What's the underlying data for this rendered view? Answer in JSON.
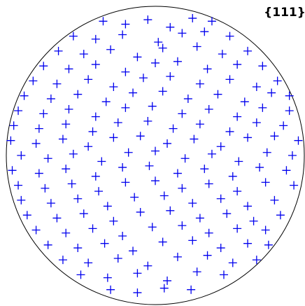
{
  "chart_data": {
    "type": "pole-figure",
    "title": "{111}",
    "color": "#0000ee",
    "xlim": [
      -1,
      1
    ],
    "ylim": [
      -1,
      1
    ],
    "points": [
      [
        -0.35,
        0.9
      ],
      [
        -0.2,
        0.88
      ],
      [
        -0.05,
        0.91
      ],
      [
        0.1,
        0.86
      ],
      [
        0.25,
        0.92
      ],
      [
        0.38,
        0.9
      ],
      [
        -0.55,
        0.8
      ],
      [
        -0.4,
        0.78
      ],
      [
        -0.22,
        0.81
      ],
      [
        0.02,
        0.76
      ],
      [
        0.18,
        0.82
      ],
      [
        0.33,
        0.83
      ],
      [
        0.5,
        0.8
      ],
      [
        -0.65,
        0.7
      ],
      [
        -0.48,
        0.68
      ],
      [
        -0.3,
        0.71
      ],
      [
        -0.12,
        0.66
      ],
      [
        0.05,
        0.72
      ],
      [
        0.28,
        0.73
      ],
      [
        0.45,
        0.68
      ],
      [
        0.62,
        0.7
      ],
      [
        -0.75,
        0.6
      ],
      [
        -0.58,
        0.58
      ],
      [
        -0.4,
        0.61
      ],
      [
        -0.2,
        0.56
      ],
      [
        0.0,
        0.62
      ],
      [
        0.15,
        0.63
      ],
      [
        0.35,
        0.58
      ],
      [
        0.55,
        0.61
      ],
      [
        0.72,
        0.6
      ],
      [
        -0.82,
        0.5
      ],
      [
        -0.66,
        0.48
      ],
      [
        -0.45,
        0.51
      ],
      [
        -0.28,
        0.46
      ],
      [
        -0.08,
        0.52
      ],
      [
        0.1,
        0.53
      ],
      [
        0.3,
        0.48
      ],
      [
        0.5,
        0.51
      ],
      [
        0.68,
        0.46
      ],
      [
        0.82,
        0.5
      ],
      [
        -0.88,
        0.4
      ],
      [
        -0.7,
        0.38
      ],
      [
        -0.52,
        0.41
      ],
      [
        -0.33,
        0.36
      ],
      [
        -0.15,
        0.42
      ],
      [
        0.05,
        0.43
      ],
      [
        0.22,
        0.38
      ],
      [
        0.42,
        0.41
      ],
      [
        0.6,
        0.36
      ],
      [
        0.78,
        0.42
      ],
      [
        0.9,
        0.4
      ],
      [
        -0.92,
        0.3
      ],
      [
        -0.75,
        0.28
      ],
      [
        -0.58,
        0.31
      ],
      [
        -0.4,
        0.26
      ],
      [
        -0.2,
        0.32
      ],
      [
        -0.02,
        0.33
      ],
      [
        0.18,
        0.28
      ],
      [
        0.36,
        0.31
      ],
      [
        0.55,
        0.26
      ],
      [
        0.72,
        0.32
      ],
      [
        0.9,
        0.3
      ],
      [
        -0.95,
        0.2
      ],
      [
        -0.78,
        0.18
      ],
      [
        -0.6,
        0.21
      ],
      [
        -0.42,
        0.16
      ],
      [
        -0.25,
        0.22
      ],
      [
        -0.05,
        0.23
      ],
      [
        0.12,
        0.18
      ],
      [
        0.3,
        0.21
      ],
      [
        0.5,
        0.16
      ],
      [
        0.68,
        0.22
      ],
      [
        0.86,
        0.2
      ],
      [
        -0.97,
        0.1
      ],
      [
        -0.8,
        0.08
      ],
      [
        -0.62,
        0.11
      ],
      [
        -0.45,
        0.06
      ],
      [
        -0.28,
        0.12
      ],
      [
        -0.1,
        0.13
      ],
      [
        0.08,
        0.08
      ],
      [
        0.26,
        0.11
      ],
      [
        0.44,
        0.06
      ],
      [
        0.62,
        0.12
      ],
      [
        0.8,
        0.13
      ],
      [
        0.96,
        0.1
      ],
      [
        -0.9,
        0
      ],
      [
        -0.72,
        -0.02
      ],
      [
        -0.55,
        0.01
      ],
      [
        -0.36,
        -0.04
      ],
      [
        -0.18,
        0.02
      ],
      [
        0,
        0.03
      ],
      [
        0.2,
        -0.02
      ],
      [
        0.38,
        0.01
      ],
      [
        0.56,
        -0.04
      ],
      [
        0.75,
        0.02
      ],
      [
        0.92,
        0
      ],
      [
        -0.96,
        -0.1
      ],
      [
        -0.78,
        -0.12
      ],
      [
        -0.6,
        -0.09
      ],
      [
        -0.4,
        -0.14
      ],
      [
        -0.22,
        -0.08
      ],
      [
        -0.04,
        -0.07
      ],
      [
        0.15,
        -0.12
      ],
      [
        0.33,
        -0.09
      ],
      [
        0.52,
        -0.14
      ],
      [
        0.7,
        -0.08
      ],
      [
        0.88,
        -0.1
      ],
      [
        -0.92,
        -0.2
      ],
      [
        -0.74,
        -0.22
      ],
      [
        -0.56,
        -0.19
      ],
      [
        -0.38,
        -0.24
      ],
      [
        -0.2,
        -0.18
      ],
      [
        0,
        -0.17
      ],
      [
        0.18,
        -0.22
      ],
      [
        0.36,
        -0.19
      ],
      [
        0.55,
        -0.24
      ],
      [
        0.74,
        -0.18
      ],
      [
        0.93,
        -0.2
      ],
      [
        -0.9,
        -0.3
      ],
      [
        -0.7,
        -0.32
      ],
      [
        -0.52,
        -0.29
      ],
      [
        -0.32,
        -0.34
      ],
      [
        -0.14,
        -0.28
      ],
      [
        0.06,
        -0.27
      ],
      [
        0.25,
        -0.32
      ],
      [
        0.44,
        -0.29
      ],
      [
        0.62,
        -0.34
      ],
      [
        0.8,
        -0.3
      ],
      [
        -0.86,
        -0.4
      ],
      [
        -0.66,
        -0.42
      ],
      [
        -0.48,
        -0.39
      ],
      [
        -0.28,
        -0.44
      ],
      [
        -0.1,
        -0.38
      ],
      [
        0.1,
        -0.37
      ],
      [
        0.3,
        -0.42
      ],
      [
        0.48,
        -0.39
      ],
      [
        0.66,
        -0.44
      ],
      [
        0.84,
        -0.4
      ],
      [
        -0.8,
        -0.5
      ],
      [
        -0.6,
        -0.52
      ],
      [
        -0.42,
        -0.49
      ],
      [
        -0.22,
        -0.54
      ],
      [
        -0.02,
        -0.48
      ],
      [
        0.18,
        -0.47
      ],
      [
        0.36,
        -0.52
      ],
      [
        0.55,
        -0.49
      ],
      [
        0.74,
        -0.5
      ],
      [
        -0.72,
        -0.6
      ],
      [
        -0.52,
        -0.62
      ],
      [
        -0.34,
        -0.59
      ],
      [
        -0.15,
        -0.64
      ],
      [
        0.05,
        -0.58
      ],
      [
        0.25,
        -0.57
      ],
      [
        0.44,
        -0.62
      ],
      [
        0.62,
        -0.59
      ],
      [
        0.76,
        -0.6
      ],
      [
        -0.62,
        -0.7
      ],
      [
        -0.45,
        -0.72
      ],
      [
        -0.25,
        -0.69
      ],
      [
        -0.05,
        -0.74
      ],
      [
        0.15,
        -0.68
      ],
      [
        0.35,
        -0.67
      ],
      [
        0.52,
        -0.72
      ],
      [
        0.68,
        -0.7
      ],
      [
        -0.5,
        -0.8
      ],
      [
        -0.32,
        -0.82
      ],
      [
        -0.12,
        -0.79
      ],
      [
        0.08,
        -0.84
      ],
      [
        0.28,
        -0.78
      ],
      [
        0.46,
        -0.8
      ],
      [
        -0.3,
        -0.9
      ],
      [
        -0.12,
        -0.92
      ],
      [
        0.06,
        -0.89
      ],
      [
        0.24,
        -0.9
      ]
    ]
  }
}
